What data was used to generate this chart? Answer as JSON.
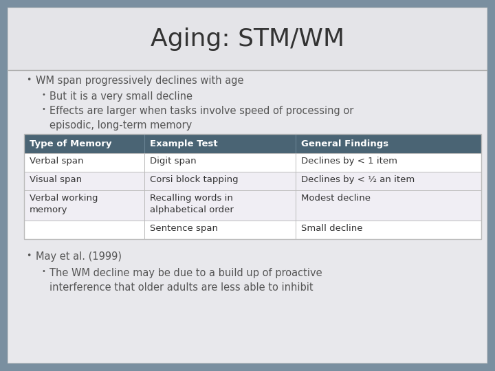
{
  "title_part1": "Aging: ",
  "title_part2": "STM/WM",
  "title_fontsize": 26,
  "bg_outer": "#7a8fa0",
  "bg_slide": "#ebebed",
  "bg_title": "#e4e4e8",
  "bg_content": "#e8e8ec",
  "header_bg": "#4a6474",
  "header_fg": "#ffffff",
  "row_bg_even": "#f0eef4",
  "row_bg_odd": "#ffffff",
  "table_border": "#bbbbbb",
  "text_color": "#555555",
  "text_color_dark": "#333333",
  "bullet_main": "WM span progressively declines with age",
  "bullet_sub1": "But it is a very small decline",
  "bullet_sub2": "Effects are larger when tasks involve speed of processing or\nepisodic, long-term memory",
  "table_headers": [
    "Type of Memory",
    "Example Test",
    "General Findings"
  ],
  "table_rows": [
    [
      "Verbal span",
      "Digit span",
      "Declines by < 1 item"
    ],
    [
      "Visual span",
      "Corsi block tapping",
      "Declines by < ½ an item"
    ],
    [
      "Verbal working\nmemory",
      "Recalling words in\nalphabetical order",
      "Modest decline"
    ],
    [
      "",
      "Sentence span",
      "Small decline"
    ]
  ],
  "bullet2_main": "May et al. (1999)",
  "bullet2_sub": "The WM decline may be due to a build up of proactive\ninterference that older adults are less able to inhibit"
}
